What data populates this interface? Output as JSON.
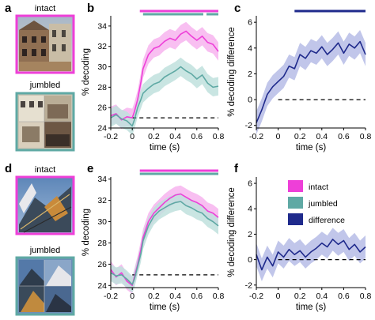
{
  "colors": {
    "intact": "#ee3fd8",
    "intact_band": "#f7b4ee",
    "jumbled": "#5fa9a4",
    "jumbled_band": "#bfe0dd",
    "difference": "#1f2a8c",
    "difference_band": "#b6bce6",
    "chance": "#000000"
  },
  "panels": {
    "a": {
      "label": "a",
      "title": "intact",
      "subtitle": "jumbled"
    },
    "d": {
      "label": "d",
      "title": "intact",
      "subtitle": "jumbled"
    }
  },
  "legend": {
    "intact": "intact",
    "jumbled": "jumbled",
    "difference": "difference"
  },
  "chart_data": [
    {
      "panel": "b",
      "label": "b",
      "type": "line",
      "xlabel": "time (s)",
      "ylabel": "% decoding",
      "xlim": [
        -0.2,
        0.8
      ],
      "ylim": [
        24,
        35
      ],
      "xticks": [
        -0.2,
        0,
        0.2,
        0.4,
        0.6,
        0.8
      ],
      "xtick_labels": [
        "-0.2",
        "0",
        "0.2",
        "0.4",
        "0.6",
        "0.8"
      ],
      "yticks": [
        24,
        26,
        28,
        30,
        32,
        34
      ],
      "ytick_labels": [
        "24",
        "26",
        "28",
        "30",
        "32",
        "34"
      ],
      "chance": 25,
      "x": [
        -0.2,
        -0.15,
        -0.1,
        -0.05,
        0,
        0.02,
        0.05,
        0.08,
        0.1,
        0.15,
        0.2,
        0.25,
        0.3,
        0.35,
        0.4,
        0.45,
        0.5,
        0.55,
        0.6,
        0.65,
        0.7,
        0.75,
        0.8
      ],
      "series": [
        {
          "name": "intact",
          "values": [
            25.2,
            25.4,
            24.8,
            25.1,
            25.0,
            25.6,
            26.8,
            28.5,
            29.8,
            31.2,
            31.8,
            32.0,
            32.5,
            32.8,
            32.6,
            33.2,
            33.5,
            33.0,
            32.6,
            33.0,
            32.4,
            32.2,
            31.5
          ],
          "error": 0.9
        },
        {
          "name": "jumbled",
          "values": [
            25.0,
            25.3,
            24.9,
            24.7,
            24.2,
            24.8,
            26.0,
            26.8,
            27.4,
            27.9,
            28.3,
            28.5,
            29.0,
            29.3,
            29.6,
            30.0,
            29.6,
            29.3,
            28.8,
            29.2,
            28.4,
            28.0,
            28.1
          ],
          "error": 0.9
        }
      ],
      "significance": [
        {
          "series": "intact",
          "start": 0.07,
          "end": 0.8
        },
        {
          "series": "jumbled",
          "start": 0.1,
          "end": 0.66
        },
        {
          "series": "jumbled",
          "start": 0.69,
          "end": 0.8
        }
      ]
    },
    {
      "panel": "c",
      "label": "c",
      "type": "line",
      "xlabel": "time (s)",
      "ylabel": "% decoding difference",
      "xlim": [
        -0.2,
        0.8
      ],
      "ylim": [
        -2.2,
        6.5
      ],
      "xticks": [
        -0.2,
        0,
        0.2,
        0.4,
        0.6,
        0.8
      ],
      "xtick_labels": [
        "-0.2",
        "0",
        "0.2",
        "0.4",
        "0.6",
        "0.8"
      ],
      "yticks": [
        -2,
        0,
        2,
        4,
        6
      ],
      "ytick_labels": [
        "-2",
        "0",
        "2",
        "4",
        "6"
      ],
      "chance": 0,
      "x": [
        -0.2,
        -0.15,
        -0.1,
        -0.05,
        0,
        0.05,
        0.1,
        0.15,
        0.2,
        0.25,
        0.3,
        0.35,
        0.4,
        0.45,
        0.5,
        0.55,
        0.6,
        0.65,
        0.7,
        0.75,
        0.8
      ],
      "series": [
        {
          "name": "difference",
          "values": [
            -1.8,
            -0.8,
            0.4,
            1.0,
            1.4,
            1.8,
            2.6,
            2.4,
            3.5,
            3.2,
            3.8,
            3.6,
            4.1,
            3.5,
            3.9,
            4.4,
            3.6,
            4.3,
            4.0,
            4.5,
            3.5
          ],
          "error": 0.9
        }
      ],
      "significance": [
        {
          "series": "difference",
          "start": 0.15,
          "end": 0.8
        }
      ]
    },
    {
      "panel": "e",
      "label": "e",
      "type": "line",
      "xlabel": "time (s)",
      "ylabel": "% decoding",
      "xlim": [
        -0.2,
        0.8
      ],
      "ylim": [
        23.8,
        34.2
      ],
      "xticks": [
        -0.2,
        0,
        0.2,
        0.4,
        0.6,
        0.8
      ],
      "xtick_labels": [
        "-0.2",
        "0",
        "0.2",
        "0.4",
        "0.6",
        "0.8"
      ],
      "yticks": [
        24,
        26,
        28,
        30,
        32,
        34
      ],
      "ytick_labels": [
        "24",
        "26",
        "28",
        "30",
        "32",
        "34"
      ],
      "chance": 25,
      "x": [
        -0.2,
        -0.15,
        -0.1,
        -0.05,
        0,
        0.02,
        0.05,
        0.08,
        0.1,
        0.15,
        0.2,
        0.25,
        0.3,
        0.35,
        0.4,
        0.45,
        0.5,
        0.55,
        0.6,
        0.65,
        0.7,
        0.75,
        0.8
      ],
      "series": [
        {
          "name": "intact",
          "values": [
            25.5,
            24.8,
            25.2,
            24.4,
            24.0,
            24.8,
            26.0,
            27.4,
            28.5,
            30.0,
            30.8,
            31.3,
            31.8,
            32.2,
            32.5,
            32.6,
            32.3,
            32.0,
            31.8,
            31.5,
            31.0,
            30.8,
            30.4
          ],
          "error": 0.8
        },
        {
          "name": "jumbled",
          "values": [
            25.2,
            24.9,
            25.0,
            24.6,
            24.1,
            24.6,
            25.8,
            27.0,
            28.2,
            29.6,
            30.5,
            31.0,
            31.3,
            31.6,
            31.8,
            31.9,
            31.5,
            31.3,
            31.0,
            30.8,
            30.3,
            30.0,
            29.6
          ],
          "error": 0.8
        }
      ],
      "significance": [
        {
          "series": "intact",
          "start": 0.07,
          "end": 0.8
        },
        {
          "series": "jumbled",
          "start": 0.07,
          "end": 0.8
        }
      ]
    },
    {
      "panel": "f",
      "label": "f",
      "type": "line",
      "xlabel": "time (s)",
      "ylabel": "% decoding difference",
      "xlim": [
        -0.2,
        0.8
      ],
      "ylim": [
        -2.2,
        6.5
      ],
      "xticks": [
        -0.2,
        0,
        0.2,
        0.4,
        0.6,
        0.8
      ],
      "xtick_labels": [
        "-0.2",
        "0",
        "0.2",
        "0.4",
        "0.6",
        "0.8"
      ],
      "yticks": [
        -2,
        0,
        2,
        4,
        6
      ],
      "ytick_labels": [
        "-2",
        "0",
        "2",
        "4",
        "6"
      ],
      "chance": 0,
      "x": [
        -0.2,
        -0.15,
        -0.1,
        -0.05,
        0,
        0.05,
        0.1,
        0.15,
        0.2,
        0.25,
        0.3,
        0.35,
        0.4,
        0.45,
        0.5,
        0.55,
        0.6,
        0.65,
        0.7,
        0.75,
        0.8
      ],
      "series": [
        {
          "name": "difference",
          "values": [
            0.4,
            -0.8,
            0.2,
            -0.5,
            0.6,
            0.2,
            0.8,
            0.4,
            0.7,
            0.2,
            0.6,
            0.9,
            1.3,
            1.0,
            1.6,
            1.2,
            1.5,
            0.8,
            1.2,
            0.6,
            1.0
          ],
          "error": 0.9
        }
      ],
      "significance": []
    }
  ]
}
